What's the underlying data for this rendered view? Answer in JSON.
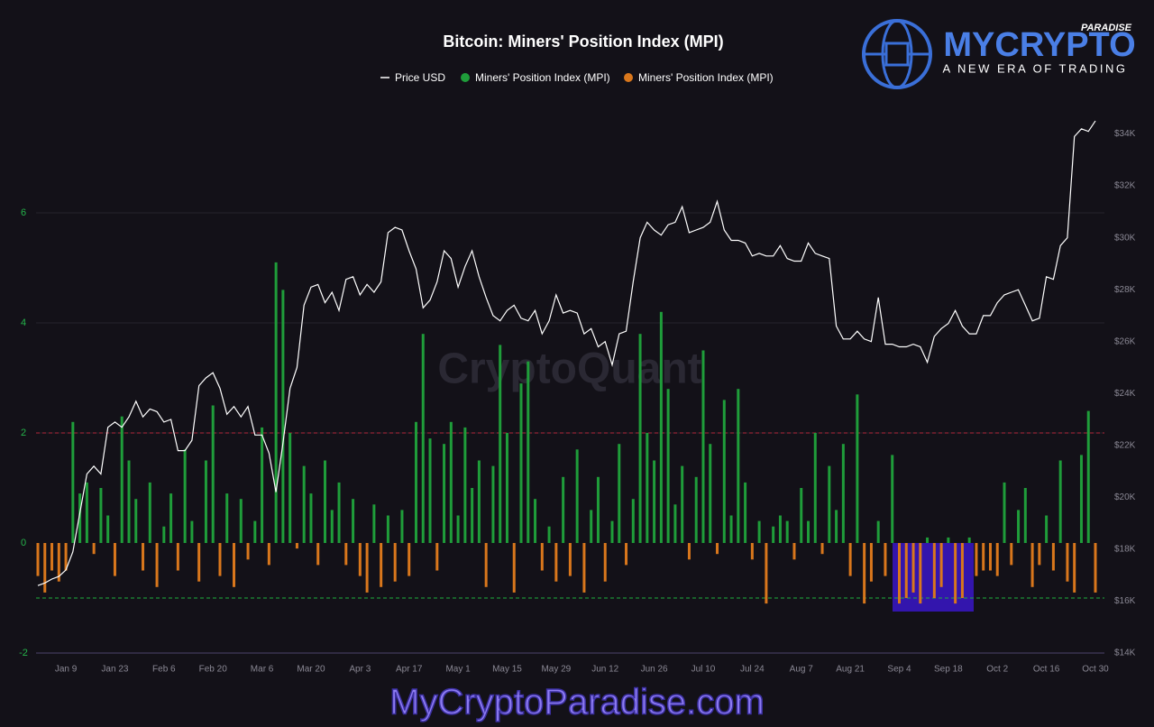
{
  "chart_data": {
    "type": "bar",
    "title": "Bitcoin: Miners' Position Index (MPI)",
    "watermark": "CryptoQuant",
    "categories": [
      null,
      null,
      null,
      null,
      "Jan 9",
      null,
      null,
      null,
      null,
      null,
      null,
      "Jan 23",
      null,
      null,
      null,
      null,
      null,
      null,
      "Feb 6",
      null,
      null,
      null,
      null,
      null,
      null,
      "Feb 20",
      null,
      null,
      null,
      null,
      null,
      null,
      "Mar 6",
      null,
      null,
      null,
      null,
      null,
      null,
      "Mar 20",
      null,
      null,
      null,
      null,
      null,
      null,
      "Apr 3",
      null,
      null,
      null,
      null,
      null,
      null,
      "Apr 17",
      null,
      null,
      null,
      null,
      null,
      null,
      "May 1",
      null,
      null,
      null,
      null,
      null,
      null,
      "May 15",
      null,
      null,
      null,
      null,
      null,
      null,
      "May 29",
      null,
      null,
      null,
      null,
      null,
      null,
      "Jun 12",
      null,
      null,
      null,
      null,
      null,
      null,
      "Jun 26",
      null,
      null,
      null,
      null,
      null,
      null,
      "Jul 10",
      null,
      null,
      null,
      null,
      null,
      null,
      "Jul 24",
      null,
      null,
      null,
      null,
      null,
      null,
      "Aug 7",
      null,
      null,
      null,
      null,
      null,
      null,
      "Aug 21",
      null,
      null,
      null,
      null,
      null,
      null,
      "Sep 4",
      null,
      null,
      null,
      null,
      null,
      null,
      "Sep 18",
      null,
      null,
      null,
      null,
      null,
      null,
      "Oct 2",
      null,
      null,
      null,
      null,
      null,
      null,
      "Oct 16",
      null,
      null,
      null,
      null,
      null,
      null,
      "Oct 30"
    ],
    "series": [
      {
        "name": "Price USD",
        "type": "line",
        "axis": "y2",
        "color": "#ffffff",
        "values": [
          16600,
          16700,
          16850,
          16950,
          17200,
          17900,
          19400,
          20900,
          21200,
          20900,
          22700,
          22900,
          22700,
          23100,
          23700,
          23100,
          23400,
          23300,
          22900,
          23000,
          21800,
          21800,
          22200,
          24300,
          24600,
          24800,
          24200,
          23200,
          23500,
          23100,
          23500,
          22400,
          22400,
          21700,
          20200,
          22100,
          24200,
          25000,
          27400,
          28100,
          28200,
          27500,
          27900,
          27200,
          28400,
          28500,
          27800,
          28200,
          27900,
          28300,
          30200,
          30400,
          30300,
          29500,
          28800,
          27300,
          27600,
          28300,
          29500,
          29200,
          28100,
          28900,
          29500,
          28500,
          27700,
          27000,
          26800,
          27200,
          27400,
          26900,
          26800,
          27200,
          26300,
          26800,
          27800,
          27100,
          27200,
          27100,
          26300,
          26500,
          25800,
          26000,
          25100,
          26300,
          26400,
          28300,
          30000,
          30600,
          30300,
          30100,
          30500,
          30600,
          31200,
          30200,
          30300,
          30400,
          30600,
          31400,
          30300,
          29900,
          29900,
          29800,
          29300,
          29400,
          29300,
          29300,
          29700,
          29200,
          29100,
          29100,
          29800,
          29400,
          29300,
          29200,
          26600,
          26100,
          26100,
          26400,
          26100,
          26000,
          27700,
          25900,
          25900,
          25800,
          25800,
          25900,
          25800,
          25200,
          26200,
          26500,
          26700,
          27200,
          26600,
          26300,
          26300,
          27000,
          27000,
          27500,
          27800,
          27900,
          28000,
          27400,
          26800,
          26900,
          28500,
          28400,
          29700,
          30000,
          33900,
          34200,
          34100,
          34500
        ]
      },
      {
        "name": "Miners' Position Index (MPI)",
        "type": "bar",
        "color": "#1f9d3a",
        "values": [
          null,
          null,
          null,
          null,
          null,
          2.2,
          0.9,
          1.1,
          null,
          1.0,
          0.5,
          null,
          2.3,
          1.5,
          0.8,
          null,
          1.1,
          null,
          0.3,
          0.9,
          null,
          1.7,
          0.4,
          null,
          1.5,
          2.5,
          null,
          0.9,
          null,
          0.8,
          null,
          0.4,
          2.1,
          null,
          5.1,
          4.6,
          2.0,
          null,
          1.4,
          0.9,
          null,
          1.5,
          0.6,
          1.1,
          null,
          0.8,
          null,
          null,
          0.7,
          null,
          0.5,
          null,
          0.6,
          null,
          2.2,
          3.8,
          1.9,
          null,
          1.8,
          2.2,
          0.5,
          2.1,
          1.0,
          1.5,
          null,
          1.4,
          3.6,
          2.0,
          null,
          2.9,
          3.3,
          0.8,
          null,
          0.3,
          null,
          1.2,
          null,
          1.7,
          null,
          0.6,
          1.2,
          null,
          0.4,
          1.8,
          null,
          0.8,
          3.8,
          2.0,
          1.5,
          4.2,
          2.8,
          0.7,
          1.4,
          null,
          1.2,
          3.5,
          1.8,
          null,
          2.6,
          0.5,
          2.8,
          1.1,
          null,
          0.4,
          null,
          0.3,
          0.5,
          0.4,
          null,
          1.0,
          0.4,
          2.0,
          null,
          1.4,
          0.6,
          1.8,
          null,
          2.7,
          null,
          null,
          0.4,
          null,
          1.6,
          null,
          null,
          null,
          null,
          0.1,
          null,
          null,
          0.1,
          null,
          null,
          0.1,
          null,
          null,
          null,
          null,
          1.1,
          null,
          0.6,
          1.0,
          null,
          null,
          0.5,
          null,
          1.5,
          null,
          null,
          1.6,
          2.4,
          null
        ]
      },
      {
        "name": "Miners' Position Index (MPI)",
        "type": "bar",
        "color": "#d9771c",
        "values": [
          -0.6,
          -0.9,
          -0.5,
          -0.7,
          -0.5,
          null,
          null,
          null,
          -0.2,
          null,
          null,
          -0.6,
          null,
          null,
          null,
          -0.5,
          null,
          -0.8,
          null,
          null,
          -0.5,
          null,
          null,
          -0.7,
          null,
          null,
          -0.6,
          null,
          -0.8,
          null,
          -0.3,
          null,
          null,
          -0.4,
          null,
          null,
          null,
          -0.1,
          null,
          null,
          -0.4,
          null,
          null,
          null,
          -0.4,
          null,
          -0.6,
          -0.9,
          null,
          -0.8,
          null,
          -0.7,
          null,
          -0.6,
          null,
          null,
          null,
          -0.5,
          null,
          null,
          null,
          null,
          null,
          null,
          -0.8,
          null,
          null,
          null,
          -0.9,
          null,
          null,
          null,
          -0.5,
          null,
          -0.7,
          null,
          -0.6,
          null,
          -0.9,
          null,
          null,
          -0.7,
          null,
          null,
          -0.4,
          null,
          null,
          null,
          null,
          null,
          null,
          null,
          null,
          -0.3,
          null,
          null,
          null,
          -0.2,
          null,
          null,
          null,
          null,
          -0.3,
          null,
          -1.1,
          null,
          null,
          null,
          -0.3,
          null,
          null,
          null,
          -0.2,
          null,
          null,
          null,
          -0.6,
          null,
          -1.1,
          -0.7,
          null,
          -0.6,
          null,
          -1.1,
          -1.0,
          -0.9,
          -1.1,
          null,
          -1.0,
          -0.8,
          null,
          -1.1,
          -1.0,
          null,
          -0.6,
          -0.5,
          -0.5,
          -0.6,
          null,
          -0.4,
          null,
          null,
          -0.8,
          -0.4,
          null,
          -0.5,
          null,
          -0.7,
          -0.9,
          null,
          null,
          -0.9
        ]
      }
    ],
    "ylim": [
      -2,
      8
    ],
    "yticks": [
      -2,
      0,
      2,
      4,
      6
    ],
    "y2lim": [
      14000,
      35200
    ],
    "y2ticks": [
      {
        "value": 14000,
        "label": "$14K"
      },
      {
        "value": 16000,
        "label": "$16K"
      },
      {
        "value": 18000,
        "label": "$18K"
      },
      {
        "value": 20000,
        "label": "$20K"
      },
      {
        "value": 22000,
        "label": "$22K"
      },
      {
        "value": 24000,
        "label": "$24K"
      },
      {
        "value": 26000,
        "label": "$26K"
      },
      {
        "value": 28000,
        "label": "$28K"
      },
      {
        "value": 30000,
        "label": "$30K"
      },
      {
        "value": 32000,
        "label": "$32K"
      },
      {
        "value": 34000,
        "label": "$34K"
      }
    ],
    "reference_lines": [
      {
        "value": 2,
        "color": "#b3263a"
      },
      {
        "value": -1,
        "color": "#1fae3e"
      }
    ],
    "grid": true
  },
  "branding": {
    "name": "MYCRYPTO",
    "tag": "PARADISE",
    "slogan": "A NEW ERA OF TRADING",
    "site": "MyCryptoParadise.com"
  }
}
